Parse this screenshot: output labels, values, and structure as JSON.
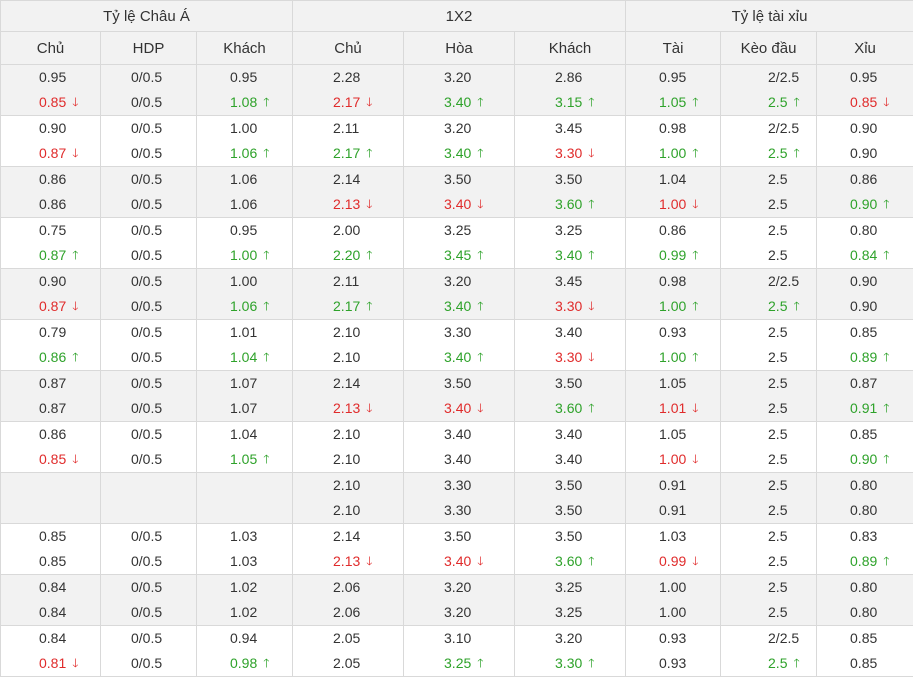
{
  "groups": {
    "asian": "Tỷ lệ Châu Á",
    "x12": "1X2",
    "ou": "Tỷ lệ tài xỉu"
  },
  "columns": [
    "Chủ",
    "HDP",
    "Khách",
    "Chủ",
    "Hòa",
    "Khách",
    "Tài",
    "Kèo đầu",
    "Xỉu"
  ],
  "rows": [
    [
      [
        {
          "v": "0.95"
        },
        {
          "v": "0.85",
          "d": "down"
        }
      ],
      [
        {
          "v": "0/0.5"
        },
        {
          "v": "0/0.5"
        }
      ],
      [
        {
          "v": "0.95"
        },
        {
          "v": "1.08",
          "d": "up"
        }
      ],
      [
        {
          "v": "2.28"
        },
        {
          "v": "2.17",
          "d": "down"
        }
      ],
      [
        {
          "v": "3.20"
        },
        {
          "v": "3.40",
          "d": "up"
        }
      ],
      [
        {
          "v": "2.86"
        },
        {
          "v": "3.15",
          "d": "up"
        }
      ],
      [
        {
          "v": "0.95"
        },
        {
          "v": "1.05",
          "d": "up"
        }
      ],
      [
        {
          "v": "2/2.5"
        },
        {
          "v": "2.5",
          "d": "up"
        }
      ],
      [
        {
          "v": "0.95"
        },
        {
          "v": "0.85",
          "d": "down"
        }
      ]
    ],
    [
      [
        {
          "v": "0.90"
        },
        {
          "v": "0.87",
          "d": "down"
        }
      ],
      [
        {
          "v": "0/0.5"
        },
        {
          "v": "0/0.5"
        }
      ],
      [
        {
          "v": "1.00"
        },
        {
          "v": "1.06",
          "d": "up"
        }
      ],
      [
        {
          "v": "2.11"
        },
        {
          "v": "2.17",
          "d": "up"
        }
      ],
      [
        {
          "v": "3.20"
        },
        {
          "v": "3.40",
          "d": "up"
        }
      ],
      [
        {
          "v": "3.45"
        },
        {
          "v": "3.30",
          "d": "down"
        }
      ],
      [
        {
          "v": "0.98"
        },
        {
          "v": "1.00",
          "d": "up"
        }
      ],
      [
        {
          "v": "2/2.5"
        },
        {
          "v": "2.5",
          "d": "up"
        }
      ],
      [
        {
          "v": "0.90"
        },
        {
          "v": "0.90"
        }
      ]
    ],
    [
      [
        {
          "v": "0.86"
        },
        {
          "v": "0.86"
        }
      ],
      [
        {
          "v": "0/0.5"
        },
        {
          "v": "0/0.5"
        }
      ],
      [
        {
          "v": "1.06"
        },
        {
          "v": "1.06"
        }
      ],
      [
        {
          "v": "2.14"
        },
        {
          "v": "2.13",
          "d": "down"
        }
      ],
      [
        {
          "v": "3.50"
        },
        {
          "v": "3.40",
          "d": "down"
        }
      ],
      [
        {
          "v": "3.50"
        },
        {
          "v": "3.60",
          "d": "up"
        }
      ],
      [
        {
          "v": "1.04"
        },
        {
          "v": "1.00",
          "d": "down"
        }
      ],
      [
        {
          "v": "2.5"
        },
        {
          "v": "2.5"
        }
      ],
      [
        {
          "v": "0.86"
        },
        {
          "v": "0.90",
          "d": "up"
        }
      ]
    ],
    [
      [
        {
          "v": "0.75"
        },
        {
          "v": "0.87",
          "d": "up"
        }
      ],
      [
        {
          "v": "0/0.5"
        },
        {
          "v": "0/0.5"
        }
      ],
      [
        {
          "v": "0.95"
        },
        {
          "v": "1.00",
          "d": "up"
        }
      ],
      [
        {
          "v": "2.00"
        },
        {
          "v": "2.20",
          "d": "up"
        }
      ],
      [
        {
          "v": "3.25"
        },
        {
          "v": "3.45",
          "d": "up"
        }
      ],
      [
        {
          "v": "3.25"
        },
        {
          "v": "3.40",
          "d": "up"
        }
      ],
      [
        {
          "v": "0.86"
        },
        {
          "v": "0.99",
          "d": "up"
        }
      ],
      [
        {
          "v": "2.5"
        },
        {
          "v": "2.5"
        }
      ],
      [
        {
          "v": "0.80"
        },
        {
          "v": "0.84",
          "d": "up"
        }
      ]
    ],
    [
      [
        {
          "v": "0.90"
        },
        {
          "v": "0.87",
          "d": "down"
        }
      ],
      [
        {
          "v": "0/0.5"
        },
        {
          "v": "0/0.5"
        }
      ],
      [
        {
          "v": "1.00"
        },
        {
          "v": "1.06",
          "d": "up"
        }
      ],
      [
        {
          "v": "2.11"
        },
        {
          "v": "2.17",
          "d": "up"
        }
      ],
      [
        {
          "v": "3.20"
        },
        {
          "v": "3.40",
          "d": "up"
        }
      ],
      [
        {
          "v": "3.45"
        },
        {
          "v": "3.30",
          "d": "down"
        }
      ],
      [
        {
          "v": "0.98"
        },
        {
          "v": "1.00",
          "d": "up"
        }
      ],
      [
        {
          "v": "2/2.5"
        },
        {
          "v": "2.5",
          "d": "up"
        }
      ],
      [
        {
          "v": "0.90"
        },
        {
          "v": "0.90"
        }
      ]
    ],
    [
      [
        {
          "v": "0.79"
        },
        {
          "v": "0.86",
          "d": "up"
        }
      ],
      [
        {
          "v": "0/0.5"
        },
        {
          "v": "0/0.5"
        }
      ],
      [
        {
          "v": "1.01"
        },
        {
          "v": "1.04",
          "d": "up"
        }
      ],
      [
        {
          "v": "2.10"
        },
        {
          "v": "2.10"
        }
      ],
      [
        {
          "v": "3.30"
        },
        {
          "v": "3.40",
          "d": "up"
        }
      ],
      [
        {
          "v": "3.40"
        },
        {
          "v": "3.30",
          "d": "down"
        }
      ],
      [
        {
          "v": "0.93"
        },
        {
          "v": "1.00",
          "d": "up"
        }
      ],
      [
        {
          "v": "2.5"
        },
        {
          "v": "2.5"
        }
      ],
      [
        {
          "v": "0.85"
        },
        {
          "v": "0.89",
          "d": "up"
        }
      ]
    ],
    [
      [
        {
          "v": "0.87"
        },
        {
          "v": "0.87"
        }
      ],
      [
        {
          "v": "0/0.5"
        },
        {
          "v": "0/0.5"
        }
      ],
      [
        {
          "v": "1.07"
        },
        {
          "v": "1.07"
        }
      ],
      [
        {
          "v": "2.14"
        },
        {
          "v": "2.13",
          "d": "down"
        }
      ],
      [
        {
          "v": "3.50"
        },
        {
          "v": "3.40",
          "d": "down"
        }
      ],
      [
        {
          "v": "3.50"
        },
        {
          "v": "3.60",
          "d": "up"
        }
      ],
      [
        {
          "v": "1.05"
        },
        {
          "v": "1.01",
          "d": "down"
        }
      ],
      [
        {
          "v": "2.5"
        },
        {
          "v": "2.5"
        }
      ],
      [
        {
          "v": "0.87"
        },
        {
          "v": "0.91",
          "d": "up"
        }
      ]
    ],
    [
      [
        {
          "v": "0.86"
        },
        {
          "v": "0.85",
          "d": "down"
        }
      ],
      [
        {
          "v": "0/0.5"
        },
        {
          "v": "0/0.5"
        }
      ],
      [
        {
          "v": "1.04"
        },
        {
          "v": "1.05",
          "d": "up"
        }
      ],
      [
        {
          "v": "2.10"
        },
        {
          "v": "2.10"
        }
      ],
      [
        {
          "v": "3.40"
        },
        {
          "v": "3.40"
        }
      ],
      [
        {
          "v": "3.40"
        },
        {
          "v": "3.40"
        }
      ],
      [
        {
          "v": "1.05"
        },
        {
          "v": "1.00",
          "d": "down"
        }
      ],
      [
        {
          "v": "2.5"
        },
        {
          "v": "2.5"
        }
      ],
      [
        {
          "v": "0.85"
        },
        {
          "v": "0.90",
          "d": "up"
        }
      ]
    ],
    [
      [],
      [],
      [],
      [
        {
          "v": "2.10"
        },
        {
          "v": "2.10"
        }
      ],
      [
        {
          "v": "3.30"
        },
        {
          "v": "3.30"
        }
      ],
      [
        {
          "v": "3.50"
        },
        {
          "v": "3.50"
        }
      ],
      [
        {
          "v": "0.91"
        },
        {
          "v": "0.91"
        }
      ],
      [
        {
          "v": "2.5"
        },
        {
          "v": "2.5"
        }
      ],
      [
        {
          "v": "0.80"
        },
        {
          "v": "0.80"
        }
      ]
    ],
    [
      [
        {
          "v": "0.85"
        },
        {
          "v": "0.85"
        }
      ],
      [
        {
          "v": "0/0.5"
        },
        {
          "v": "0/0.5"
        }
      ],
      [
        {
          "v": "1.03"
        },
        {
          "v": "1.03"
        }
      ],
      [
        {
          "v": "2.14"
        },
        {
          "v": "2.13",
          "d": "down"
        }
      ],
      [
        {
          "v": "3.50"
        },
        {
          "v": "3.40",
          "d": "down"
        }
      ],
      [
        {
          "v": "3.50"
        },
        {
          "v": "3.60",
          "d": "up"
        }
      ],
      [
        {
          "v": "1.03"
        },
        {
          "v": "0.99",
          "d": "down"
        }
      ],
      [
        {
          "v": "2.5"
        },
        {
          "v": "2.5"
        }
      ],
      [
        {
          "v": "0.83"
        },
        {
          "v": "0.89",
          "d": "up"
        }
      ]
    ],
    [
      [
        {
          "v": "0.84"
        },
        {
          "v": "0.84"
        }
      ],
      [
        {
          "v": "0/0.5"
        },
        {
          "v": "0/0.5"
        }
      ],
      [
        {
          "v": "1.02"
        },
        {
          "v": "1.02"
        }
      ],
      [
        {
          "v": "2.06"
        },
        {
          "v": "2.06"
        }
      ],
      [
        {
          "v": "3.20"
        },
        {
          "v": "3.20"
        }
      ],
      [
        {
          "v": "3.25"
        },
        {
          "v": "3.25"
        }
      ],
      [
        {
          "v": "1.00"
        },
        {
          "v": "1.00"
        }
      ],
      [
        {
          "v": "2.5"
        },
        {
          "v": "2.5"
        }
      ],
      [
        {
          "v": "0.80"
        },
        {
          "v": "0.80"
        }
      ]
    ],
    [
      [
        {
          "v": "0.84"
        },
        {
          "v": "0.81",
          "d": "down"
        }
      ],
      [
        {
          "v": "0/0.5"
        },
        {
          "v": "0/0.5"
        }
      ],
      [
        {
          "v": "0.94"
        },
        {
          "v": "0.98",
          "d": "up"
        }
      ],
      [
        {
          "v": "2.05"
        },
        {
          "v": "2.05"
        }
      ],
      [
        {
          "v": "3.10"
        },
        {
          "v": "3.25",
          "d": "up"
        }
      ],
      [
        {
          "v": "3.20"
        },
        {
          "v": "3.30",
          "d": "up"
        }
      ],
      [
        {
          "v": "0.93"
        },
        {
          "v": "0.93"
        }
      ],
      [
        {
          "v": "2/2.5"
        },
        {
          "v": "2.5",
          "d": "up"
        }
      ],
      [
        {
          "v": "0.85"
        },
        {
          "v": "0.85"
        }
      ]
    ]
  ],
  "arrows": {
    "up": "🡑",
    "down": "🡓"
  },
  "colors": {
    "up": "#2ea22a",
    "down": "#e02b2b",
    "header_bg": "#f2f2f2",
    "border": "#d9d9d9"
  },
  "icons": {
    "up": "arrow-up-icon",
    "down": "arrow-down-icon"
  }
}
